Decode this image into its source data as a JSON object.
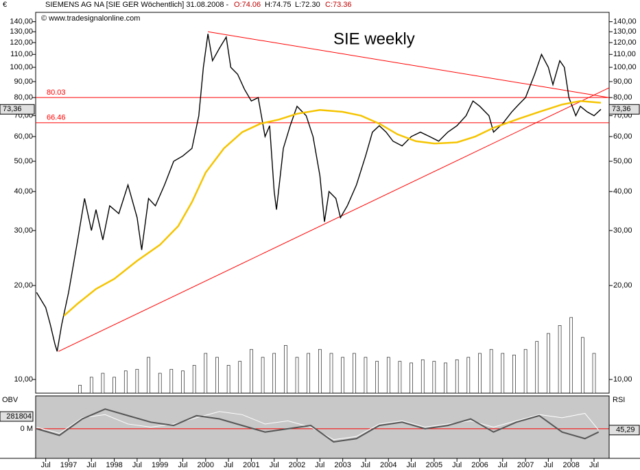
{
  "chart_data": {
    "type": "line",
    "currency": "€",
    "title": "SIEMENS AG NA [SIE GER  Wöchentlich] 31.08.2008 -",
    "ohlc": [
      "O:74.06",
      "H:74.75",
      "L:72.30",
      "C:73.36"
    ],
    "watermark": "© www.tradesignalonline.com",
    "annotation": "SIE weekly",
    "log_scale": true,
    "xlim": [
      1996.28,
      2008.83
    ],
    "ylim": [
      9.04,
      150
    ],
    "yticks": [
      {
        "value": 10,
        "label": "10,00"
      },
      {
        "value": 20,
        "label": "20,00"
      },
      {
        "value": 30,
        "label": "30,00"
      },
      {
        "value": 40,
        "label": "40,00"
      },
      {
        "value": 50,
        "label": "50,00"
      },
      {
        "value": 60,
        "label": "60,00"
      },
      {
        "value": 70,
        "label": "70,00"
      },
      {
        "value": 80,
        "label": "80,00"
      },
      {
        "value": 90,
        "label": "90,00"
      },
      {
        "value": 100,
        "label": "100,00"
      },
      {
        "value": 110,
        "label": "110,00"
      },
      {
        "value": 120,
        "label": "120,00"
      },
      {
        "value": 130,
        "label": "130,00"
      },
      {
        "value": 140,
        "label": "140,00"
      }
    ],
    "xticks": [
      {
        "value": 1996.5,
        "label": "Jul"
      },
      {
        "value": 1997,
        "label": "1997"
      },
      {
        "value": 1997.5,
        "label": "Jul"
      },
      {
        "value": 1998,
        "label": "1998"
      },
      {
        "value": 1998.5,
        "label": "Jul"
      },
      {
        "value": 1999,
        "label": "1999"
      },
      {
        "value": 1999.5,
        "label": "Jul"
      },
      {
        "value": 2000,
        "label": "2000"
      },
      {
        "value": 2000.5,
        "label": "Jul"
      },
      {
        "value": 2001,
        "label": "2001"
      },
      {
        "value": 2001.5,
        "label": "Jul"
      },
      {
        "value": 2002,
        "label": "2002"
      },
      {
        "value": 2002.5,
        "label": "Jul"
      },
      {
        "value": 2003,
        "label": "2003"
      },
      {
        "value": 2003.5,
        "label": "Jul"
      },
      {
        "value": 2004,
        "label": "2004"
      },
      {
        "value": 2004.5,
        "label": "Jul"
      },
      {
        "value": 2005,
        "label": "2005"
      },
      {
        "value": 2005.5,
        "label": "Jul"
      },
      {
        "value": 2006,
        "label": "2006"
      },
      {
        "value": 2006.5,
        "label": "Jul"
      },
      {
        "value": 2007,
        "label": "2007"
      },
      {
        "value": 2007.5,
        "label": "Jul"
      },
      {
        "value": 2008,
        "label": "2008"
      },
      {
        "value": 2008.5,
        "label": "Jul"
      }
    ],
    "series": [
      {
        "color": "#000000",
        "x": [
          1996.3,
          1996.5,
          1996.6,
          1996.7,
          1996.75,
          1996.85,
          1997.0,
          1997.2,
          1997.35,
          1997.5,
          1997.6,
          1997.75,
          1997.9,
          1998.1,
          1998.3,
          1998.5,
          1998.6,
          1998.75,
          1998.9,
          1999.1,
          1999.3,
          1999.5,
          1999.7,
          1999.85,
          1999.95,
          2000.05,
          2000.15,
          2000.3,
          2000.45,
          2000.55,
          2000.7,
          2000.85,
          2001.0,
          2001.15,
          2001.3,
          2001.4,
          2001.5,
          2001.55,
          2001.7,
          2001.85,
          2002.0,
          2002.2,
          2002.35,
          2002.5,
          2002.6,
          2002.7,
          2002.85,
          2002.95,
          2003.1,
          2003.3,
          2003.5,
          2003.65,
          2003.8,
          2003.95,
          2004.1,
          2004.3,
          2004.5,
          2004.7,
          2004.9,
          2005.1,
          2005.3,
          2005.5,
          2005.7,
          2005.85,
          2006.0,
          2006.2,
          2006.3,
          2006.5,
          2006.7,
          2006.85,
          2007.0,
          2007.2,
          2007.35,
          2007.5,
          2007.6,
          2007.75,
          2007.85,
          2007.95,
          2008.1,
          2008.2,
          2008.35,
          2008.5,
          2008.65
        ],
        "values": [
          19,
          17,
          15,
          13,
          12.3,
          15,
          19,
          28,
          38,
          30,
          35,
          28,
          36,
          34,
          42,
          33,
          26,
          38,
          36,
          42,
          50,
          52,
          55,
          70,
          100,
          128,
          105,
          115,
          125,
          100,
          95,
          85,
          78,
          80,
          60,
          65,
          40,
          35,
          55,
          65,
          75,
          70,
          60,
          45,
          32,
          40,
          38,
          33,
          36,
          42,
          52,
          62,
          65,
          62,
          58,
          56,
          60,
          62,
          60,
          58,
          62,
          65,
          70,
          78,
          75,
          70,
          62,
          66,
          72,
          76,
          80,
          95,
          110,
          100,
          88,
          105,
          100,
          80,
          70,
          75,
          72,
          70,
          73.36
        ]
      },
      {
        "color": "#f5c400",
        "x": [
          1996.9,
          1997.2,
          1997.6,
          1998.0,
          1998.5,
          1999.0,
          1999.4,
          1999.7,
          2000.0,
          2000.4,
          2000.8,
          2001.2,
          2001.6,
          2002.0,
          2002.5,
          2003.0,
          2003.4,
          2003.8,
          2004.2,
          2004.6,
          2005.0,
          2005.5,
          2005.9,
          2006.3,
          2006.8,
          2007.3,
          2007.8,
          2008.2,
          2008.65
        ],
        "values": [
          16,
          17.5,
          19.5,
          21,
          24,
          27,
          31,
          37,
          46,
          55,
          62,
          66,
          68,
          71,
          73,
          72,
          70,
          66,
          61,
          58,
          57,
          57.5,
          60,
          64,
          68,
          72,
          76,
          78,
          77
        ]
      }
    ],
    "trendlines": [
      {
        "x": [
          1996.78,
          2008.83
        ],
        "y": [
          12.3,
          86
        ]
      },
      {
        "x": [
          2000.05,
          2008.83
        ],
        "y": [
          130,
          80
        ]
      }
    ],
    "levels": [
      80.03,
      66.46
    ],
    "level_color": "#ff0000",
    "last": {
      "value": 73.36,
      "label": "73,36"
    },
    "volume": {
      "color": "#ffffff",
      "vlim": [
        0,
        100
      ],
      "x": [
        1997.25,
        1997.5,
        1997.75,
        1998,
        1998.25,
        1998.5,
        1998.75,
        1999,
        1999.25,
        1999.5,
        1999.75,
        2000,
        2000.25,
        2000.5,
        2000.75,
        2001,
        2001.25,
        2001.5,
        2001.75,
        2002,
        2002.25,
        2002.5,
        2002.75,
        2003,
        2003.25,
        2003.5,
        2003.75,
        2004,
        2004.25,
        2004.5,
        2004.75,
        2005,
        2005.25,
        2005.5,
        2005.75,
        2006,
        2006.25,
        2006.5,
        2006.75,
        2007,
        2007.25,
        2007.5,
        2007.75,
        2008,
        2008.25,
        2008.5
      ],
      "values": [
        10,
        20,
        25,
        20,
        28,
        30,
        45,
        25,
        30,
        28,
        35,
        50,
        45,
        35,
        40,
        55,
        45,
        50,
        60,
        45,
        50,
        55,
        50,
        45,
        50,
        45,
        40,
        45,
        40,
        38,
        42,
        40,
        38,
        42,
        45,
        50,
        55,
        50,
        48,
        55,
        65,
        75,
        85,
        95,
        70,
        50
      ]
    },
    "obv": {
      "name": "OBV",
      "color": "#555555",
      "ylim": [
        -45,
        50
      ],
      "yticks": [
        {
          "value": 0,
          "label": "0 M"
        }
      ],
      "last_label": "281804",
      "x": [
        1996.3,
        1996.8,
        1997.3,
        1997.8,
        1998.3,
        1998.8,
        1999.3,
        1999.8,
        2000.3,
        2000.8,
        2001.3,
        2001.8,
        2002.3,
        2002.8,
        2003.3,
        2003.8,
        2004.3,
        2004.8,
        2005.3,
        2005.8,
        2006.3,
        2006.8,
        2007.3,
        2007.8,
        2008.3,
        2008.6
      ],
      "values": [
        0,
        -10,
        15,
        30,
        20,
        10,
        5,
        20,
        15,
        5,
        -5,
        0,
        5,
        -20,
        -15,
        5,
        10,
        0,
        5,
        15,
        -5,
        10,
        20,
        -5,
        -15,
        -5
      ]
    },
    "rsi": {
      "name": "RSI",
      "color": "#ffffff",
      "ylim": [
        0,
        100
      ],
      "last": {
        "value": 45.29,
        "label": "45,29"
      },
      "x": [
        1996.3,
        1996.8,
        1997.3,
        1997.8,
        1998.3,
        1998.8,
        1999.3,
        1999.8,
        2000.3,
        2000.8,
        2001.3,
        2001.8,
        2002.3,
        2002.8,
        2003.3,
        2003.8,
        2004.3,
        2004.8,
        2005.3,
        2005.8,
        2006.3,
        2006.8,
        2007.3,
        2007.8,
        2008.3,
        2008.6
      ],
      "values": [
        50,
        40,
        65,
        70,
        55,
        50,
        55,
        65,
        75,
        70,
        55,
        60,
        50,
        30,
        35,
        55,
        60,
        50,
        55,
        60,
        50,
        60,
        70,
        65,
        72,
        45.29
      ]
    }
  }
}
